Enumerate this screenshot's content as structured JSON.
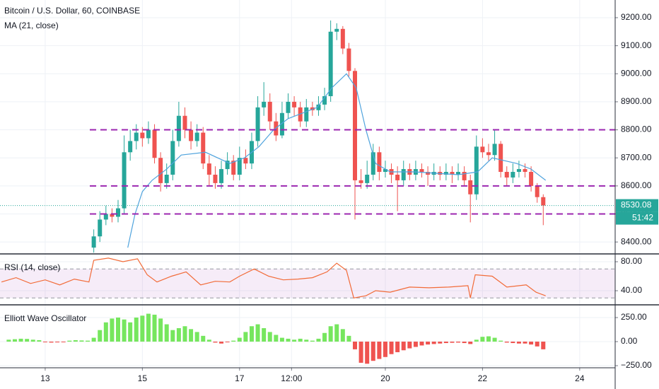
{
  "chart_data": [
    {
      "type": "candlestick",
      "title": "Bitcoin / U.S. Dollar, 60, COINBASE",
      "up_color": "#26a69a",
      "down_color": "#ef5350",
      "x": [
        14,
        14.125,
        14.25,
        14.375,
        14.5,
        14.625,
        14.75,
        14.875,
        15,
        15.125,
        15.25,
        15.375,
        15.5,
        15.625,
        15.75,
        15.875,
        16,
        16.125,
        16.25,
        16.375,
        16.5,
        16.625,
        16.75,
        16.875,
        17,
        17.125,
        17.25,
        17.375,
        17.5,
        17.625,
        17.75,
        17.875,
        18,
        18.125,
        18.25,
        18.375,
        18.5,
        18.625,
        18.75,
        18.875,
        19,
        19.125,
        19.25,
        19.375,
        19.5,
        19.625,
        19.75,
        19.875,
        20,
        20.125,
        20.25,
        20.375,
        20.5,
        20.625,
        20.75,
        20.875,
        21,
        21.125,
        21.25,
        21.375,
        21.5,
        21.625,
        21.75,
        21.875,
        22,
        22.125,
        22.25,
        22.375,
        22.5,
        22.625,
        22.75,
        22.875,
        23,
        23.125,
        23.25
      ],
      "open": [
        8380,
        8420,
        8480,
        8500,
        8490,
        8520,
        8720,
        8760,
        8790,
        8770,
        8800,
        8700,
        8610,
        8640,
        8760,
        8850,
        8800,
        8760,
        8790,
        8680,
        8640,
        8610,
        8660,
        8690,
        8640,
        8700,
        8680,
        8760,
        8880,
        8900,
        8830,
        8780,
        8860,
        8900,
        8880,
        8830,
        8880,
        8870,
        8890,
        8920,
        9150,
        9160,
        9090,
        9010,
        8620,
        8610,
        8640,
        8720,
        8650,
        8660,
        8640,
        8620,
        8660,
        8640,
        8660,
        8650,
        8640,
        8650,
        8640,
        8650,
        8640,
        8650,
        8620,
        8570,
        8740,
        8720,
        8710,
        8750,
        8650,
        8630,
        8650,
        8660,
        8650,
        8600,
        8560
      ],
      "high": [
        8445,
        8510,
        8530,
        8520,
        8550,
        8780,
        8800,
        8820,
        8810,
        8830,
        8820,
        8720,
        8680,
        8800,
        8900,
        8880,
        8830,
        8820,
        8810,
        8710,
        8670,
        8690,
        8720,
        8710,
        8740,
        8730,
        8790,
        8920,
        8970,
        8930,
        8860,
        8900,
        8930,
        8920,
        8900,
        8910,
        8900,
        8920,
        8950,
        9190,
        9180,
        9170,
        9110,
        9020,
        8660,
        8690,
        8750,
        8740,
        8690,
        8680,
        8670,
        8690,
        8680,
        8690,
        8680,
        8670,
        8680,
        8670,
        8680,
        8670,
        8680,
        8670,
        8640,
        8780,
        8770,
        8750,
        8800,
        8760,
        8670,
        8680,
        8690,
        8680,
        8670,
        8610,
        8570
      ],
      "low": [
        8362,
        8400,
        8460,
        8470,
        8470,
        8500,
        8690,
        8730,
        8740,
        8750,
        8680,
        8580,
        8590,
        8620,
        8740,
        8770,
        8730,
        8740,
        8660,
        8600,
        8590,
        8590,
        8640,
        8620,
        8620,
        8660,
        8660,
        8740,
        8850,
        8800,
        8760,
        8770,
        8840,
        8850,
        8810,
        8810,
        8850,
        8850,
        8870,
        8900,
        9120,
        9070,
        8990,
        8480,
        8590,
        8590,
        8620,
        8620,
        8630,
        8610,
        8510,
        8600,
        8620,
        8620,
        8630,
        8600,
        8620,
        8620,
        8620,
        8610,
        8620,
        8600,
        8470,
        8550,
        8700,
        8690,
        8690,
        8630,
        8600,
        8610,
        8630,
        8630,
        8580,
        8540,
        8460
      ],
      "close": [
        8420,
        8480,
        8500,
        8490,
        8520,
        8720,
        8760,
        8790,
        8770,
        8800,
        8700,
        8610,
        8640,
        8760,
        8850,
        8800,
        8760,
        8790,
        8680,
        8640,
        8610,
        8660,
        8690,
        8640,
        8700,
        8680,
        8760,
        8880,
        8900,
        8830,
        8780,
        8860,
        8900,
        8880,
        8830,
        8880,
        8870,
        8890,
        8920,
        9150,
        9160,
        9090,
        9010,
        8620,
        8610,
        8640,
        8720,
        8650,
        8660,
        8640,
        8620,
        8660,
        8640,
        8660,
        8650,
        8640,
        8650,
        8640,
        8650,
        8640,
        8650,
        8620,
        8570,
        8740,
        8720,
        8710,
        8750,
        8650,
        8630,
        8650,
        8660,
        8650,
        8600,
        8560,
        8530
      ],
      "series": [
        {
          "name": "MA (21, close)",
          "color": "#4fa3dd",
          "x": [
            14.7,
            14.85,
            15,
            15.2,
            15.5,
            15.8,
            16.3,
            16.8,
            17.1,
            17.4,
            17.7,
            18,
            18.3,
            18.6,
            18.9,
            19.2,
            19.4,
            19.6,
            19.8,
            20.1,
            20.6,
            21.5,
            21.9,
            22.2,
            22.7,
            23,
            23.3
          ],
          "values": [
            8380,
            8500,
            8580,
            8620,
            8660,
            8710,
            8720,
            8680,
            8700,
            8740,
            8800,
            8840,
            8860,
            8880,
            8950,
            9000,
            8950,
            8800,
            8680,
            8650,
            8650,
            8640,
            8650,
            8700,
            8680,
            8660,
            8620
          ]
        }
      ],
      "levels": [
        8800,
        8600,
        8500
      ],
      "level_color": "#9c27b0",
      "last_price": 8530.08,
      "countdown": "51:42",
      "xlim": [
        12.07,
        24.73
      ],
      "ylim": [
        8360,
        9263
      ],
      "yticks": [
        {
          "value": 8400,
          "label": "8400.00"
        },
        {
          "value": 8500,
          "label": "8500.00"
        },
        {
          "value": 8600,
          "label": "8600.00"
        },
        {
          "value": 8700,
          "label": "8700.00"
        },
        {
          "value": 8800,
          "label": "8800.00"
        },
        {
          "value": 8900,
          "label": "8900.00"
        },
        {
          "value": 9000,
          "label": "9000.00"
        },
        {
          "value": 9100,
          "label": "9100.00"
        },
        {
          "value": 9200,
          "label": "9200.00"
        }
      ],
      "grid": true
    },
    {
      "type": "line",
      "title": "RSI (14, close)",
      "color": "#f26b38",
      "band_color": "#9c27b0",
      "x": [
        12.1,
        12.4,
        12.7,
        13,
        13.3,
        13.6,
        13.9,
        14,
        14.3,
        14.6,
        14.9,
        15.1,
        15.3,
        15.6,
        15.9,
        16.2,
        16.5,
        16.8,
        17,
        17.3,
        17.6,
        17.9,
        18.2,
        18.5,
        18.8,
        19,
        19.2,
        19.35,
        19.6,
        19.8,
        20.1,
        20.5,
        20.9,
        21.3,
        21.7,
        21.75,
        21.85,
        22.2,
        22.5,
        22.9,
        23.1,
        23.3
      ],
      "values": [
        52,
        58,
        50,
        55,
        48,
        56,
        52,
        82,
        85,
        80,
        84,
        62,
        52,
        60,
        66,
        48,
        53,
        52,
        60,
        70,
        60,
        55,
        56,
        58,
        66,
        78,
        68,
        30,
        33,
        40,
        38,
        45,
        44,
        45,
        47,
        30,
        62,
        60,
        45,
        48,
        38,
        33
      ],
      "bands": [
        30,
        70
      ],
      "xlim": [
        12.07,
        24.73
      ],
      "ylim": [
        21.5,
        89.8
      ],
      "yticks": [
        {
          "value": 40,
          "label": "40.00"
        },
        {
          "value": 80,
          "label": "80.00"
        }
      ],
      "grid": true
    },
    {
      "type": "bar",
      "title": "Elliott Wave Oscillator",
      "up_color": "#76e65e",
      "down_color": "#ef5350",
      "x": [
        12.25,
        12.375,
        12.5,
        12.625,
        12.75,
        12.875,
        13,
        13.125,
        13.25,
        13.375,
        13.5,
        13.625,
        13.75,
        13.875,
        14,
        14.125,
        14.25,
        14.375,
        14.5,
        14.625,
        14.75,
        14.875,
        15,
        15.125,
        15.25,
        15.375,
        15.5,
        15.625,
        15.75,
        15.875,
        16,
        16.125,
        16.25,
        16.375,
        16.5,
        16.625,
        16.75,
        16.875,
        17,
        17.125,
        17.25,
        17.375,
        17.5,
        17.625,
        17.75,
        17.875,
        18,
        18.125,
        18.25,
        18.375,
        18.5,
        18.625,
        18.75,
        18.875,
        19,
        19.125,
        19.25,
        19.375,
        19.5,
        19.625,
        19.75,
        19.875,
        20,
        20.125,
        20.25,
        20.375,
        20.5,
        20.625,
        20.75,
        20.875,
        21,
        21.125,
        21.25,
        21.375,
        21.5,
        21.625,
        21.75,
        21.875,
        22,
        22.125,
        22.25,
        22.375,
        22.5,
        22.625,
        22.75,
        22.875,
        23,
        23.125,
        23.25
      ],
      "values": [
        20,
        25,
        30,
        28,
        20,
        15,
        -5,
        -10,
        -8,
        -5,
        10,
        15,
        12,
        10,
        40,
        120,
        200,
        240,
        250,
        230,
        200,
        250,
        270,
        290,
        280,
        240,
        180,
        120,
        140,
        160,
        130,
        100,
        60,
        20,
        -10,
        -20,
        -5,
        10,
        40,
        100,
        160,
        180,
        140,
        100,
        70,
        40,
        30,
        20,
        30,
        20,
        10,
        30,
        90,
        160,
        180,
        130,
        60,
        -80,
        -220,
        -230,
        -200,
        -180,
        -160,
        -130,
        -110,
        -90,
        -70,
        -55,
        -40,
        -30,
        -25,
        -20,
        -15,
        -12,
        -10,
        -15,
        -25,
        20,
        50,
        55,
        40,
        10,
        -10,
        -15,
        -20,
        -20,
        -30,
        -50,
        -80
      ],
      "xlim": [
        12.07,
        24.73
      ],
      "ylim": [
        -272,
        375
      ],
      "yticks": [
        {
          "value": -250,
          "label": "−250.00"
        },
        {
          "value": 0,
          "label": "0.00"
        },
        {
          "value": 250,
          "label": "250.00"
        }
      ],
      "xticks": [
        13,
        15,
        17,
        {
          "value": 18.07,
          "label": "12:00"
        },
        20,
        22,
        24
      ],
      "grid": true
    }
  ]
}
